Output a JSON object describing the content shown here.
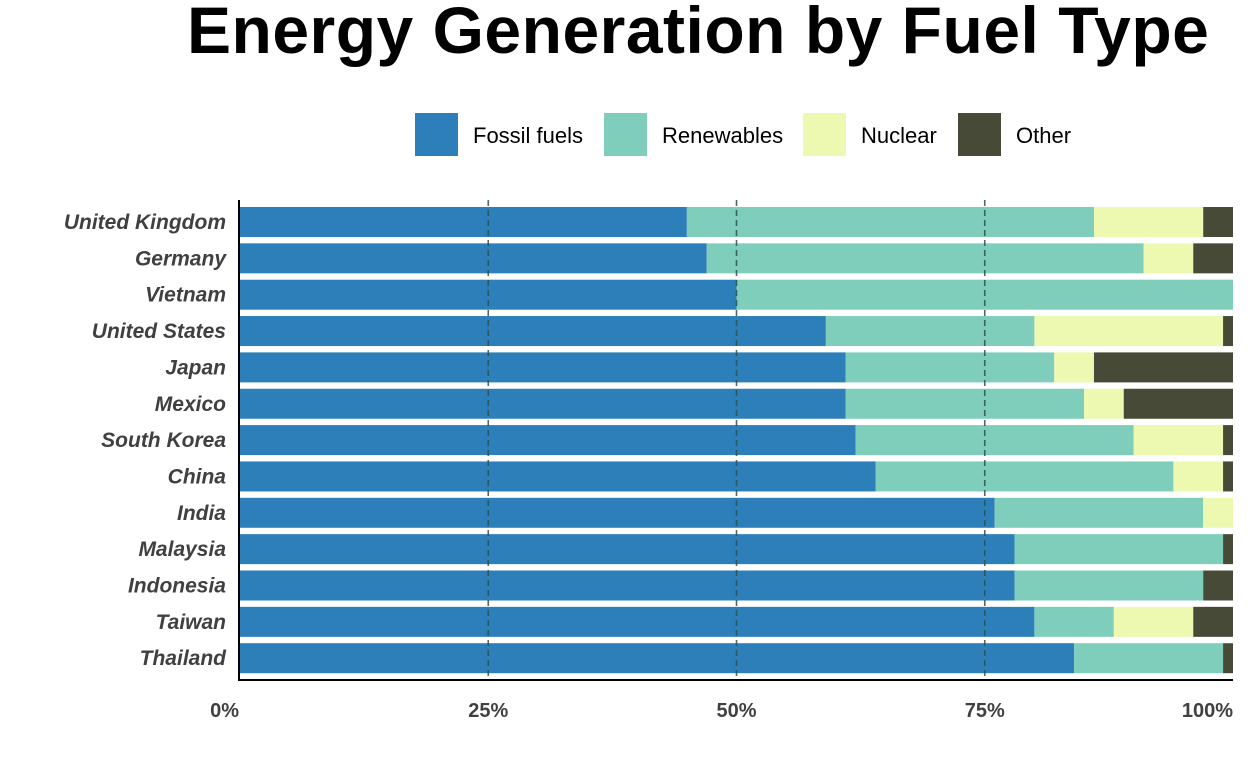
{
  "chart_data": {
    "type": "bar",
    "orientation": "horizontal",
    "stacked": "percent",
    "title": "Energy Generation by Fuel Type",
    "categories": [
      "United Kingdom",
      "Germany",
      "Vietnam",
      "United States",
      "Japan",
      "Mexico",
      "South Korea",
      "China",
      "India",
      "Malaysia",
      "Indonesia",
      "Taiwan",
      "Thailand"
    ],
    "series": [
      {
        "name": "Fossil fuels",
        "color": "#2c7fb8",
        "values": [
          45,
          47,
          50,
          59,
          61,
          61,
          62,
          64,
          76,
          78,
          78,
          80,
          84
        ]
      },
      {
        "name": "Renewables",
        "color": "#7fcdbb",
        "values": [
          41,
          44,
          50,
          21,
          21,
          24,
          28,
          30,
          21,
          21,
          19,
          8,
          15
        ]
      },
      {
        "name": "Nuclear",
        "color": "#edf8b1",
        "values": [
          11,
          5,
          0,
          19,
          4,
          4,
          9,
          5,
          3,
          0,
          0,
          8,
          0
        ]
      },
      {
        "name": "Other",
        "color": "#474a37",
        "values": [
          3,
          4,
          0,
          1,
          14,
          11,
          1,
          1,
          0,
          1,
          3,
          4,
          1
        ]
      }
    ],
    "xticks": [
      "0%",
      "25%",
      "50%",
      "75%",
      "100%"
    ],
    "xlim": [
      0,
      100
    ],
    "gridlines": "dashed vertical at 25%, 50%, 75%",
    "legend_position": "top"
  }
}
